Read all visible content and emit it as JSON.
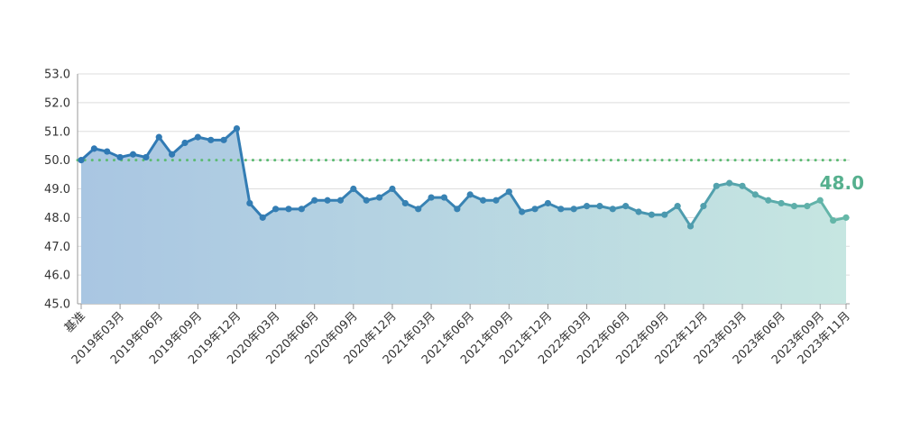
{
  "chart_data": {
    "type": "area",
    "ylim": [
      45.0,
      53.0
    ],
    "yticks": [
      "45.0",
      "46.0",
      "47.0",
      "48.0",
      "49.0",
      "50.0",
      "51.0",
      "52.0",
      "53.0"
    ],
    "baseline": 50.0,
    "grid": true,
    "end_label": "48.0",
    "x_tick_labels": [
      {
        "index": 0,
        "label": "基准"
      },
      {
        "index": 3,
        "label": "2019年03月"
      },
      {
        "index": 6,
        "label": "2019年06月"
      },
      {
        "index": 9,
        "label": "2019年09月"
      },
      {
        "index": 12,
        "label": "2019年12月"
      },
      {
        "index": 15,
        "label": "2020年03月"
      },
      {
        "index": 18,
        "label": "2020年06月"
      },
      {
        "index": 21,
        "label": "2020年09月"
      },
      {
        "index": 24,
        "label": "2020年12月"
      },
      {
        "index": 27,
        "label": "2021年03月"
      },
      {
        "index": 30,
        "label": "2021年06月"
      },
      {
        "index": 33,
        "label": "2021年09月"
      },
      {
        "index": 36,
        "label": "2021年12月"
      },
      {
        "index": 39,
        "label": "2022年03月"
      },
      {
        "index": 42,
        "label": "2022年06月"
      },
      {
        "index": 45,
        "label": "2022年09月"
      },
      {
        "index": 48,
        "label": "2022年12月"
      },
      {
        "index": 51,
        "label": "2023年03月"
      },
      {
        "index": 54,
        "label": "2023年06月"
      },
      {
        "index": 57,
        "label": "2023年09月"
      },
      {
        "index": 59,
        "label": "2023年11月"
      }
    ],
    "values": [
      50.0,
      50.4,
      50.3,
      50.1,
      50.2,
      50.1,
      50.8,
      50.2,
      50.6,
      50.8,
      50.7,
      50.7,
      51.1,
      48.5,
      48.0,
      48.3,
      48.3,
      48.3,
      48.6,
      48.6,
      48.6,
      49.0,
      48.6,
      48.7,
      49.0,
      48.5,
      48.3,
      48.7,
      48.7,
      48.3,
      48.8,
      48.6,
      48.6,
      48.9,
      48.2,
      48.3,
      48.5,
      48.3,
      48.3,
      48.4,
      48.4,
      48.3,
      48.4,
      48.2,
      48.1,
      48.1,
      48.4,
      47.7,
      48.4,
      49.1,
      49.2,
      49.1,
      48.8,
      48.6,
      48.5,
      48.4,
      48.4,
      48.6,
      47.9,
      48.0
    ],
    "colors": {
      "line_start": "#2f78b4",
      "line_end": "#66b8a8",
      "fill_start": "#a9c6e2",
      "fill_end": "#c6e6e1",
      "baseline": "#5dbb73",
      "end_label": "#56b08e",
      "grid": "#dddddd",
      "axis": "#999999"
    }
  }
}
